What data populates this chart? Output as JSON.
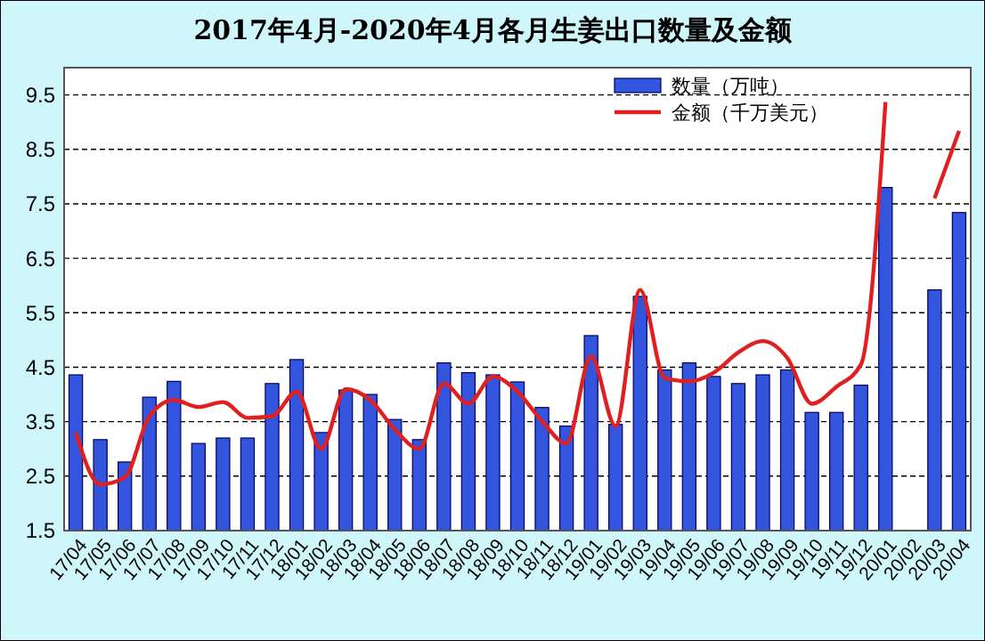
{
  "chart_data": {
    "type": "bar",
    "title": "2017年4月-2020年4月各月生姜出口数量及金额",
    "categories": [
      "17/04",
      "17/05",
      "17/06",
      "17/07",
      "17/08",
      "17/09",
      "17/10",
      "17/11",
      "17/12",
      "18/01",
      "18/02",
      "18/03",
      "18/04",
      "18/05",
      "18/06",
      "18/07",
      "18/08",
      "18/09",
      "18/10",
      "18/11",
      "18/12",
      "19/01",
      "19/02",
      "19/03",
      "19/04",
      "19/05",
      "19/06",
      "19/07",
      "19/08",
      "19/09",
      "19/10",
      "19/11",
      "19/12",
      "20/01",
      "20/02",
      "20/03",
      "20/04"
    ],
    "series": [
      {
        "name": "数量（万吨）",
        "color": "#3355dd",
        "values": [
          4.36,
          3.17,
          2.76,
          3.95,
          4.24,
          3.1,
          3.2,
          3.2,
          4.2,
          4.64,
          3.3,
          4.08,
          4.0,
          3.54,
          3.17,
          4.58,
          4.4,
          4.36,
          4.23,
          3.76,
          3.42,
          5.08,
          3.45,
          5.8,
          4.45,
          4.58,
          4.33,
          4.2,
          4.36,
          4.45,
          3.67,
          3.67,
          4.17,
          7.8,
          null,
          5.92,
          7.34
        ]
      },
      {
        "name": "金额（千万美元）",
        "type": "line",
        "color": "#e02020",
        "values": [
          3.3,
          2.35,
          2.48,
          3.6,
          3.9,
          3.77,
          3.86,
          3.57,
          3.6,
          4.05,
          3.0,
          4.1,
          3.9,
          3.36,
          3.0,
          4.2,
          3.83,
          4.33,
          4.05,
          3.51,
          3.1,
          4.7,
          3.42,
          5.92,
          4.3,
          4.24,
          4.4,
          4.77,
          4.98,
          4.67,
          3.83,
          4.14,
          4.55,
          9.37,
          null,
          7.6,
          8.84
        ]
      }
    ],
    "ylim": [
      1.5,
      10
    ],
    "yticks": [
      1.5,
      2.5,
      3.5,
      4.5,
      5.5,
      6.5,
      7.5,
      8.5,
      9.5
    ],
    "grid": "y",
    "legend": "top right",
    "marker": "none",
    "line_style": "solid"
  }
}
